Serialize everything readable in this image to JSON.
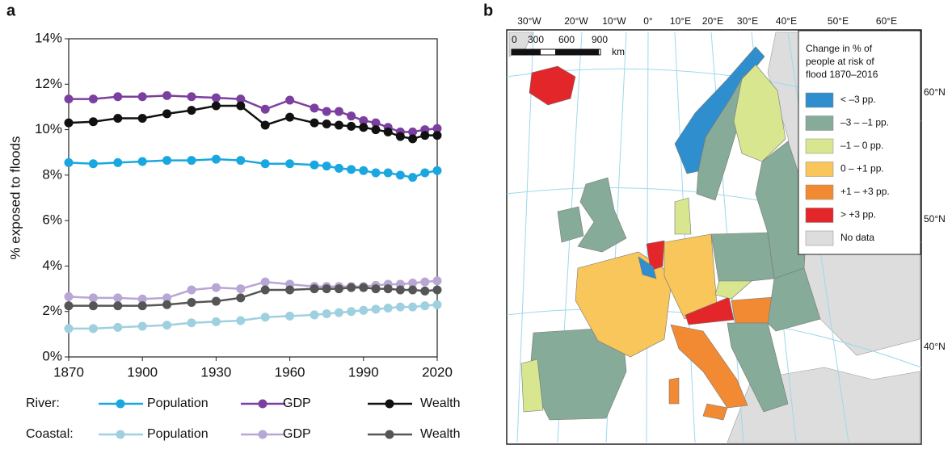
{
  "chart_data": {
    "type": "line",
    "panel_label": "a",
    "y_label": "% exposed to floods",
    "x": [
      1870,
      1880,
      1890,
      1900,
      1910,
      1920,
      1930,
      1940,
      1950,
      1960,
      1970,
      1975,
      1980,
      1985,
      1990,
      1995,
      2000,
      2005,
      2010,
      2015,
      2020
    ],
    "xlim": [
      1870,
      2020
    ],
    "xticks": [
      1870,
      1900,
      1930,
      1960,
      1990,
      2020
    ],
    "ylim": [
      0,
      14
    ],
    "yticks": [
      {
        "value": 0,
        "label": "0%"
      },
      {
        "value": 2,
        "label": "2%"
      },
      {
        "value": 4,
        "label": "4%"
      },
      {
        "value": 6,
        "label": "6%"
      },
      {
        "value": 8,
        "label": "8%"
      },
      {
        "value": 10,
        "label": "10%"
      },
      {
        "value": 12,
        "label": "12%"
      },
      {
        "value": 14,
        "label": "14%"
      }
    ],
    "legend_groups": [
      "River:",
      "Coastal:"
    ],
    "series": [
      {
        "name": "Population",
        "color": "#1aa7e0",
        "values": [
          8.55,
          8.5,
          8.55,
          8.6,
          8.65,
          8.65,
          8.7,
          8.65,
          8.5,
          8.5,
          8.45,
          8.4,
          8.3,
          8.25,
          8.2,
          8.1,
          8.1,
          8.0,
          7.9,
          8.1,
          8.2
        ]
      },
      {
        "name": "GDP",
        "color": "#7b3fa0",
        "values": [
          11.35,
          11.35,
          11.45,
          11.45,
          11.5,
          11.45,
          11.4,
          11.35,
          10.9,
          11.3,
          10.95,
          10.8,
          10.8,
          10.6,
          10.4,
          10.3,
          10.1,
          9.9,
          9.9,
          10.0,
          10.05
        ]
      },
      {
        "name": "Wealth",
        "color": "#111111",
        "values": [
          10.3,
          10.35,
          10.5,
          10.5,
          10.7,
          10.85,
          11.05,
          11.05,
          10.2,
          10.55,
          10.3,
          10.25,
          10.2,
          10.15,
          10.1,
          10.0,
          9.9,
          9.7,
          9.6,
          9.75,
          9.75
        ]
      },
      {
        "name": "Population",
        "color": "#9fd0e0",
        "values": [
          1.25,
          1.25,
          1.3,
          1.35,
          1.4,
          1.5,
          1.55,
          1.6,
          1.75,
          1.8,
          1.85,
          1.9,
          1.95,
          2.0,
          2.05,
          2.1,
          2.15,
          2.2,
          2.2,
          2.25,
          2.3
        ]
      },
      {
        "name": "GDP",
        "color": "#b8a6d4",
        "values": [
          2.65,
          2.6,
          2.6,
          2.55,
          2.6,
          2.95,
          3.05,
          3.0,
          3.3,
          3.2,
          3.1,
          3.1,
          3.1,
          3.1,
          3.1,
          3.15,
          3.2,
          3.2,
          3.25,
          3.3,
          3.35
        ]
      },
      {
        "name": "Wealth",
        "color": "#555555",
        "values": [
          2.25,
          2.25,
          2.25,
          2.25,
          2.3,
          2.4,
          2.45,
          2.6,
          2.95,
          2.95,
          3.0,
          3.0,
          3.0,
          3.05,
          3.05,
          3.0,
          3.0,
          2.95,
          2.95,
          2.9,
          2.95
        ]
      }
    ]
  },
  "map": {
    "panel_label": "b",
    "longitudes": [
      "30°W",
      "20°W",
      "10°W",
      "0°",
      "10°E",
      "20°E",
      "30°E",
      "40°E",
      "50°E",
      "60°E"
    ],
    "latitudes": [
      "60°N",
      "50°N",
      "40°N"
    ],
    "scale": [
      "0",
      "300",
      "600",
      "900",
      "km"
    ],
    "legend": {
      "title": [
        "Change in % of",
        "people at risk of",
        "flood 1870–2016"
      ],
      "items": [
        {
          "label": "< –3 pp.",
          "color": "#2f8fce"
        },
        {
          "label": "–3 – –1 pp.",
          "color": "#86ab98"
        },
        {
          "label": "–1 – 0 pp.",
          "color": "#d8e690"
        },
        {
          "label": "0 – +1 pp.",
          "color": "#f8c65a"
        },
        {
          "label": "+1 –  +3 pp.",
          "color": "#f28a34"
        },
        {
          "label": "> +3 pp.",
          "color": "#e3262a"
        },
        {
          "label": "No data",
          "color": "#dddddd"
        }
      ]
    }
  }
}
